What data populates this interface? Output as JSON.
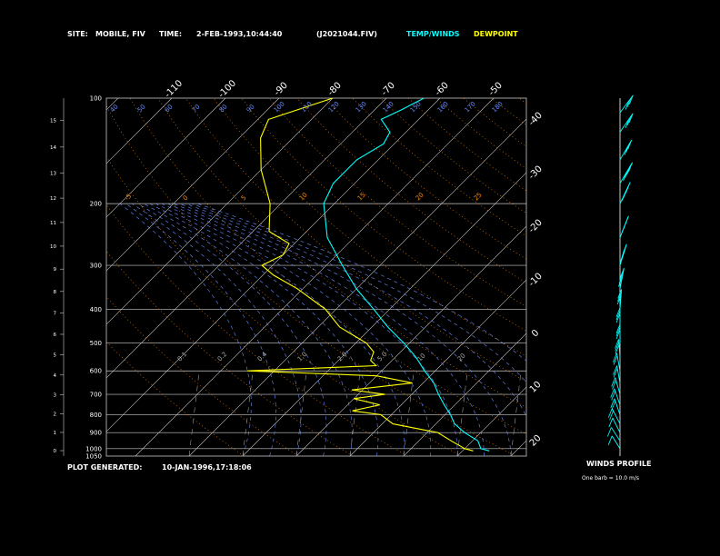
{
  "header": {
    "site_label": "SITE:",
    "site_value": "MOBILE, FIV",
    "time_label": "TIME:",
    "time_value": "2-FEB-1993,10:44:40",
    "file": "(J2021044.FIV)",
    "legend_temp": "TEMP/WINDS",
    "legend_dew": "DEWPOINT"
  },
  "footer": {
    "generated_label": "PLOT GENERATED:",
    "generated_value": "10-JAN-1996,17:18:06"
  },
  "wind_panel": {
    "title": "WINDS PROFILE",
    "note": "One barb = 10.0 m/s"
  },
  "colors": {
    "background": "#000000",
    "temperature": "#00ffff",
    "dewpoint": "#ffff00",
    "isobar": "#c8c8c8",
    "isotherm": "#c8c8c8",
    "dry_adiabat": "#ff8c00",
    "moist_adiabat": "#6a8cff"
  },
  "chart_data": {
    "type": "line",
    "subtype": "skew-T log-P diagram",
    "y_axis": {
      "scale": "log",
      "pressure_ticks_hpa": [
        100,
        200,
        300,
        400,
        500,
        600,
        700,
        800,
        900,
        1000,
        1050
      ],
      "pressure_tick_labels": [
        "100",
        "200",
        "300",
        "400",
        "500",
        "600",
        "700",
        "800",
        "900",
        "1000",
        "1050"
      ],
      "height_ticks_km": [
        0,
        1,
        2,
        3,
        4,
        5,
        6,
        7,
        8,
        9,
        10,
        11,
        12,
        13,
        14,
        15
      ],
      "height_tick_labels": [
        "0",
        "1",
        "2",
        "3",
        "4",
        "5",
        "6",
        "7",
        "8",
        "9",
        "10",
        "11",
        "12",
        "13",
        "14",
        "15"
      ],
      "pressure_range_hpa": [
        1050,
        100
      ]
    },
    "x_axis": {
      "temperature_ticks_c": [
        -110,
        -100,
        -90,
        -80,
        -70,
        -60,
        -50,
        -40,
        -30,
        -20,
        -10,
        0,
        10,
        20,
        30
      ],
      "temperature_tick_labels": [
        "-110",
        "-100",
        "-90",
        "-80",
        "-70",
        "-60",
        "-50",
        "-40",
        "-30",
        "-20",
        "-10",
        "0",
        "10",
        "20",
        "30"
      ],
      "skewed": true
    },
    "dry_adiabat_labels": [
      "40",
      "50",
      "60",
      "70",
      "80",
      "90",
      "100",
      "110",
      "120",
      "130",
      "140",
      "150",
      "160",
      "170",
      "180"
    ],
    "moist_adiabat_labels": [
      "-5",
      "0",
      "5",
      "10",
      "15",
      "20",
      "25"
    ],
    "mixing_ratio_labels": [
      "0.1",
      "0.2",
      "0.4",
      "1.0",
      "2.0",
      "5.0",
      "10",
      "20"
    ],
    "series": [
      {
        "name": "TEMP/WINDS",
        "points": [
          {
            "p": 1015,
            "t": 15
          },
          {
            "p": 1000,
            "t": 13
          },
          {
            "p": 950,
            "t": 11
          },
          {
            "p": 900,
            "t": 7
          },
          {
            "p": 850,
            "t": 3.5
          },
          {
            "p": 800,
            "t": 1
          },
          {
            "p": 750,
            "t": -2
          },
          {
            "p": 700,
            "t": -5
          },
          {
            "p": 650,
            "t": -8
          },
          {
            "p": 600,
            "t": -12
          },
          {
            "p": 550,
            "t": -16
          },
          {
            "p": 500,
            "t": -21
          },
          {
            "p": 450,
            "t": -27
          },
          {
            "p": 400,
            "t": -33
          },
          {
            "p": 350,
            "t": -40
          },
          {
            "p": 300,
            "t": -47
          },
          {
            "p": 250,
            "t": -55
          },
          {
            "p": 200,
            "t": -62
          },
          {
            "p": 175,
            "t": -64
          },
          {
            "p": 150,
            "t": -64
          },
          {
            "p": 135,
            "t": -62
          },
          {
            "p": 125,
            "t": -63
          },
          {
            "p": 115,
            "t": -67
          },
          {
            "p": 108,
            "t": -65
          },
          {
            "p": 100,
            "t": -63
          }
        ]
      },
      {
        "name": "DEWPOINT",
        "points": [
          {
            "p": 1015,
            "t": 12
          },
          {
            "p": 1000,
            "t": 10
          },
          {
            "p": 950,
            "t": 6
          },
          {
            "p": 900,
            "t": 2
          },
          {
            "p": 850,
            "t": -8
          },
          {
            "p": 800,
            "t": -12
          },
          {
            "p": 780,
            "t": -18
          },
          {
            "p": 750,
            "t": -14
          },
          {
            "p": 720,
            "t": -20
          },
          {
            "p": 700,
            "t": -15
          },
          {
            "p": 680,
            "t": -22
          },
          {
            "p": 650,
            "t": -12
          },
          {
            "p": 620,
            "t": -20
          },
          {
            "p": 600,
            "t": -45
          },
          {
            "p": 580,
            "t": -22
          },
          {
            "p": 560,
            "t": -24
          },
          {
            "p": 530,
            "t": -25
          },
          {
            "p": 500,
            "t": -28
          },
          {
            "p": 450,
            "t": -36
          },
          {
            "p": 400,
            "t": -42
          },
          {
            "p": 350,
            "t": -51
          },
          {
            "p": 320,
            "t": -58
          },
          {
            "p": 300,
            "t": -62
          },
          {
            "p": 280,
            "t": -60
          },
          {
            "p": 260,
            "t": -61
          },
          {
            "p": 240,
            "t": -67
          },
          {
            "p": 200,
            "t": -72
          },
          {
            "p": 160,
            "t": -80
          },
          {
            "p": 130,
            "t": -86
          },
          {
            "p": 115,
            "t": -88
          },
          {
            "p": 100,
            "t": -80
          }
        ]
      }
    ],
    "winds_profile": {
      "barb_unit_ms": 10,
      "points": [
        {
          "p": 1000,
          "dir": 250,
          "spd": 5
        },
        {
          "p": 950,
          "dir": 250,
          "spd": 8
        },
        {
          "p": 900,
          "dir": 255,
          "spd": 12
        },
        {
          "p": 850,
          "dir": 255,
          "spd": 15
        },
        {
          "p": 800,
          "dir": 260,
          "spd": 17
        },
        {
          "p": 750,
          "dir": 260,
          "spd": 18
        },
        {
          "p": 700,
          "dir": 262,
          "spd": 20
        },
        {
          "p": 650,
          "dir": 265,
          "spd": 22
        },
        {
          "p": 600,
          "dir": 265,
          "spd": 24
        },
        {
          "p": 550,
          "dir": 268,
          "spd": 26
        },
        {
          "p": 500,
          "dir": 270,
          "spd": 28
        },
        {
          "p": 450,
          "dir": 270,
          "spd": 30
        },
        {
          "p": 400,
          "dir": 272,
          "spd": 32
        },
        {
          "p": 350,
          "dir": 275,
          "spd": 35
        },
        {
          "p": 300,
          "dir": 278,
          "spd": 38
        },
        {
          "p": 250,
          "dir": 280,
          "spd": 40
        },
        {
          "p": 200,
          "dir": 282,
          "spd": 40
        },
        {
          "p": 175,
          "dir": 285,
          "spd": 38
        },
        {
          "p": 150,
          "dir": 285,
          "spd": 34
        },
        {
          "p": 125,
          "dir": 288,
          "spd": 30
        },
        {
          "p": 110,
          "dir": 290,
          "spd": 25
        }
      ]
    }
  }
}
